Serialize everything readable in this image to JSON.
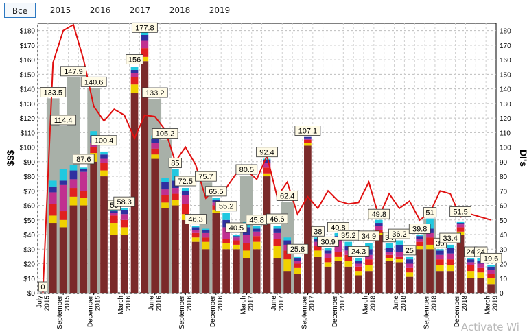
{
  "tabs": [
    {
      "label": "Все",
      "active": true
    },
    {
      "label": "2015",
      "active": false
    },
    {
      "label": "2016",
      "active": false
    },
    {
      "label": "2017",
      "active": false
    },
    {
      "label": "2018",
      "active": false
    },
    {
      "label": "2019",
      "active": false
    }
  ],
  "watermark": "Activate Wi",
  "chart_data": {
    "type": "bar",
    "stacked": true,
    "ylabel_left": "$$$",
    "ylabel_right": "DI's",
    "ylim": [
      0,
      185
    ],
    "yticks_left": [
      "$0",
      "$10",
      "$20",
      "$30",
      "$40",
      "$50",
      "$60",
      "$70",
      "$80",
      "$90",
      "$100",
      "$110",
      "$120",
      "$130",
      "$140",
      "$150",
      "$160",
      "$170",
      "$180"
    ],
    "yticks_right": [
      "0",
      "10",
      "20",
      "30",
      "40",
      "50",
      "60",
      "70",
      "80",
      "90",
      "100",
      "110",
      "120",
      "130",
      "140",
      "150",
      "160",
      "170",
      "180"
    ],
    "grid": true,
    "xticks": [
      {
        "i": 0,
        "label": "July 2015"
      },
      {
        "i": 2,
        "label": "September 2015"
      },
      {
        "i": 5,
        "label": "December 2015"
      },
      {
        "i": 8,
        "label": "March 2016"
      },
      {
        "i": 11,
        "label": "June 2016"
      },
      {
        "i": 14,
        "label": "September 2016"
      },
      {
        "i": 17,
        "label": "December 2016"
      },
      {
        "i": 20,
        "label": "March 2017"
      },
      {
        "i": 23,
        "label": "June 2017"
      },
      {
        "i": 26,
        "label": "September 2017"
      },
      {
        "i": 29,
        "label": "December 2017"
      },
      {
        "i": 32,
        "label": "March 2018"
      },
      {
        "i": 35,
        "label": "June 2018"
      },
      {
        "i": 38,
        "label": "September 2018"
      },
      {
        "i": 41,
        "label": "December 2018"
      },
      {
        "i": 44,
        "label": "March 2019"
      }
    ],
    "segment_colors": [
      "#7b2a2a",
      "#f0d000",
      "#e02020",
      "#c03090",
      "#3030a0",
      "#20c8e0"
    ],
    "totals": [
      0,
      133.5,
      114.4,
      147.9,
      87.6,
      140.6,
      100.4,
      56,
      58.3,
      156,
      177.8,
      133.2,
      105.2,
      85,
      72.5,
      46.3,
      75.7,
      65.5,
      55.2,
      40.5,
      80.5,
      45.8,
      92.4,
      46.6,
      62.4,
      25.8,
      107.1,
      38,
      30.9,
      40.8,
      35.2,
      24.3,
      34.9,
      49.8,
      34,
      36.2,
      25,
      39.8,
      51,
      30,
      33.4,
      51.5,
      24,
      24,
      19.6
    ],
    "total_labels": [
      "0",
      "133.5",
      "114.4",
      "147.9",
      "87.6",
      "140.6",
      "100.4",
      "56",
      "58.3",
      "156",
      "177.8",
      "133.2",
      "105.2",
      "85",
      "72.5",
      "46.3",
      "75.7",
      "65.5",
      "55.2",
      "40.5",
      "80.5",
      "45.8",
      "92.4",
      "46.6",
      "62.4",
      "25.8",
      "107.1",
      "38",
      "30.9",
      "40.8",
      "35.2",
      "24.3",
      "34.9",
      "49.8",
      "34",
      "36.2",
      "25",
      "39.8",
      "51",
      "30",
      "33.4",
      "51.5",
      "24",
      "24",
      "19.6"
    ],
    "stacks": [
      [
        0,
        0,
        0,
        0,
        0,
        0
      ],
      [
        48,
        5,
        8,
        8,
        4,
        4
      ],
      [
        45,
        5,
        6,
        18,
        3,
        8
      ],
      [
        60,
        6,
        6,
        6,
        6,
        4
      ],
      [
        60,
        5,
        5,
        13,
        2,
        1
      ],
      [
        90,
        6,
        4,
        3,
        5,
        3
      ],
      [
        80,
        4,
        5,
        3,
        3,
        2
      ],
      [
        40,
        8,
        5,
        2,
        1,
        1
      ],
      [
        40,
        5,
        5,
        4,
        3,
        1
      ],
      [
        137,
        6,
        5,
        3,
        2,
        2
      ],
      [
        159,
        3,
        6,
        5,
        4,
        4
      ],
      [
        92,
        3,
        4,
        4,
        3,
        2
      ],
      [
        58,
        4,
        5,
        4,
        5,
        3
      ],
      [
        60,
        4,
        4,
        4,
        5,
        8
      ],
      [
        50,
        4,
        7,
        6,
        3,
        2
      ],
      [
        35,
        3,
        3,
        2,
        2,
        1
      ],
      [
        30,
        5,
        3,
        3,
        2,
        1
      ],
      [
        55,
        2,
        3,
        2,
        2,
        1
      ],
      [
        30,
        4,
        3,
        8,
        5,
        5
      ],
      [
        30,
        3,
        3,
        2,
        1,
        1
      ],
      [
        24,
        5,
        5,
        6,
        5,
        4
      ],
      [
        30,
        5,
        4,
        3,
        2,
        2
      ],
      [
        80,
        2,
        4,
        3,
        2,
        1
      ],
      [
        24,
        8,
        5,
        4,
        3,
        2
      ],
      [
        15,
        8,
        6,
        4,
        3,
        2
      ],
      [
        13,
        4,
        3,
        2,
        2,
        1
      ],
      [
        101,
        2,
        2,
        1,
        1,
        0
      ],
      [
        25,
        4,
        3,
        3,
        2,
        1
      ],
      [
        18,
        3,
        3,
        3,
        2,
        2
      ],
      [
        22,
        3,
        3,
        9,
        2,
        2
      ],
      [
        18,
        4,
        4,
        3,
        3,
        3
      ],
      [
        12,
        3,
        3,
        2,
        2,
        2
      ],
      [
        15,
        4,
        4,
        3,
        4,
        4
      ],
      [
        40,
        1,
        2,
        3,
        2,
        2
      ],
      [
        22,
        2,
        2,
        2,
        3,
        3
      ],
      [
        21,
        2,
        2,
        3,
        5,
        3
      ],
      [
        11,
        3,
        3,
        3,
        3,
        2
      ],
      [
        30,
        2,
        3,
        2,
        2,
        1
      ],
      [
        30,
        3,
        5,
        3,
        3,
        7
      ],
      [
        15,
        4,
        4,
        3,
        3,
        1
      ],
      [
        15,
        4,
        4,
        4,
        4,
        2
      ],
      [
        40,
        2,
        3,
        2,
        1,
        1
      ],
      [
        10,
        5,
        4,
        2,
        2,
        1
      ],
      [
        10,
        4,
        3,
        3,
        2,
        2
      ],
      [
        6,
        4,
        3,
        3,
        2,
        1
      ]
    ],
    "background_bars": [
      {
        "i": 1,
        "value": 133.5
      },
      {
        "i": 2,
        "value": 114.4
      },
      {
        "i": 3,
        "value": 147.9
      },
      {
        "i": 5,
        "value": 140.6
      },
      {
        "i": 11,
        "value": 133.2
      },
      {
        "i": 12,
        "value": 105.2
      },
      {
        "i": 16,
        "value": 75.7
      },
      {
        "i": 20,
        "value": 80.5
      },
      {
        "i": 24,
        "value": 62.4
      },
      {
        "i": 38,
        "value": 51
      }
    ],
    "background_bar_color": "#a8b0a8",
    "line": {
      "color": "#e01010",
      "axis": "right",
      "values": [
        0,
        158,
        180,
        184,
        160,
        128,
        118,
        126,
        122,
        106,
        122,
        121,
        112,
        90,
        100,
        88,
        65,
        72,
        72,
        82,
        84,
        78,
        94,
        66,
        76,
        54,
        66,
        58,
        70,
        63,
        61,
        62,
        76,
        52,
        68,
        58,
        63,
        50,
        55,
        70,
        68,
        52,
        54,
        52,
        50
      ]
    }
  }
}
